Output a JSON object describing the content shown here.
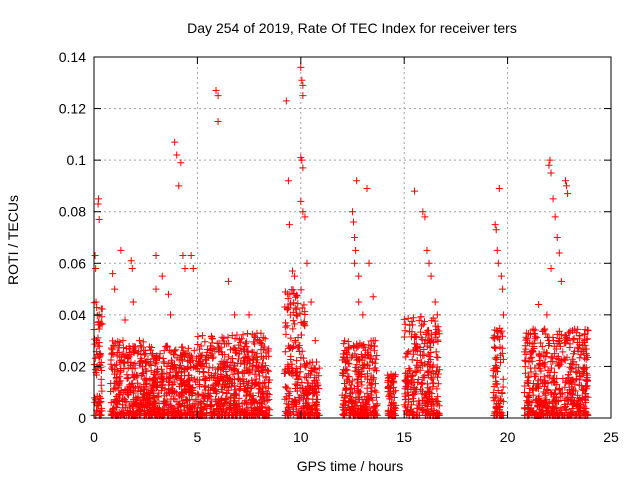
{
  "chart_data": {
    "type": "scatter",
    "title": "Day 254 of 2019, Rate Of TEC Index for receiver ters",
    "xlabel": "GPS time / hours",
    "ylabel": "ROTI / TECUs",
    "xlim": [
      0,
      25
    ],
    "ylim": [
      0,
      0.14
    ],
    "x_ticks": [
      0,
      5,
      10,
      15,
      20,
      25
    ],
    "x_tick_labels": [
      "0",
      "5",
      "10",
      "15",
      "20",
      "25"
    ],
    "y_ticks": [
      0,
      0.02,
      0.04,
      0.06,
      0.08,
      0.1,
      0.12,
      0.14
    ],
    "y_tick_labels": [
      "0",
      "0.02",
      "0.04",
      "0.06",
      "0.08",
      "0.1",
      "0.12",
      "0.14"
    ],
    "grid": true,
    "marker": "+",
    "color": "#ff0000",
    "series": [
      {
        "name": "ROTI",
        "points": [
          [
            0.05,
            0.063
          ],
          [
            0.08,
            0.058
          ],
          [
            0.1,
            0.045
          ],
          [
            0.12,
            0.03
          ],
          [
            0.15,
            0.02
          ],
          [
            0.2,
            0.083
          ],
          [
            0.22,
            0.085
          ],
          [
            0.25,
            0.077
          ],
          [
            0.25,
            0.04
          ],
          [
            0.3,
            0.025
          ],
          [
            0.35,
            0.015
          ],
          [
            0.9,
            0.056
          ],
          [
            1.0,
            0.05
          ],
          [
            1.3,
            0.065
          ],
          [
            1.4,
            0.03
          ],
          [
            1.5,
            0.038
          ],
          [
            1.8,
            0.061
          ],
          [
            1.85,
            0.058
          ],
          [
            1.9,
            0.045
          ],
          [
            2.2,
            0.03
          ],
          [
            2.5,
            0.025
          ],
          [
            3.0,
            0.063
          ],
          [
            3.0,
            0.05
          ],
          [
            3.3,
            0.055
          ],
          [
            3.6,
            0.048
          ],
          [
            3.7,
            0.04
          ],
          [
            3.9,
            0.107
          ],
          [
            4.0,
            0.102
          ],
          [
            4.1,
            0.09
          ],
          [
            4.2,
            0.099
          ],
          [
            4.3,
            0.063
          ],
          [
            4.4,
            0.058
          ],
          [
            4.7,
            0.063
          ],
          [
            4.8,
            0.058
          ],
          [
            5.9,
            0.127
          ],
          [
            6.0,
            0.125
          ],
          [
            6.0,
            0.115
          ],
          [
            6.5,
            0.053
          ],
          [
            6.8,
            0.04
          ],
          [
            7.5,
            0.04
          ],
          [
            8.0,
            0.03
          ],
          [
            9.3,
            0.123
          ],
          [
            9.4,
            0.092
          ],
          [
            9.45,
            0.075
          ],
          [
            9.6,
            0.057
          ],
          [
            9.7,
            0.055
          ],
          [
            9.8,
            0.04
          ],
          [
            10.0,
            0.136
          ],
          [
            10.05,
            0.131
          ],
          [
            10.1,
            0.129
          ],
          [
            10.1,
            0.125
          ],
          [
            10.0,
            0.101
          ],
          [
            10.05,
            0.1
          ],
          [
            10.1,
            0.097
          ],
          [
            10.0,
            0.084
          ],
          [
            10.1,
            0.08
          ],
          [
            10.2,
            0.078
          ],
          [
            10.3,
            0.06
          ],
          [
            10.5,
            0.045
          ],
          [
            10.7,
            0.03
          ],
          [
            12.5,
            0.08
          ],
          [
            12.55,
            0.076
          ],
          [
            12.6,
            0.07
          ],
          [
            12.65,
            0.065
          ],
          [
            12.7,
            0.092
          ],
          [
            12.6,
            0.06
          ],
          [
            12.8,
            0.055
          ],
          [
            12.8,
            0.045
          ],
          [
            13.0,
            0.04
          ],
          [
            13.2,
            0.089
          ],
          [
            13.3,
            0.06
          ],
          [
            13.5,
            0.047
          ],
          [
            13.6,
            0.03
          ],
          [
            15.5,
            0.088
          ],
          [
            15.9,
            0.08
          ],
          [
            16.0,
            0.078
          ],
          [
            16.1,
            0.065
          ],
          [
            16.2,
            0.06
          ],
          [
            16.3,
            0.055
          ],
          [
            16.5,
            0.045
          ],
          [
            16.6,
            0.04
          ],
          [
            19.4,
            0.075
          ],
          [
            19.45,
            0.073
          ],
          [
            19.5,
            0.065
          ],
          [
            19.55,
            0.06
          ],
          [
            19.6,
            0.089
          ],
          [
            19.7,
            0.055
          ],
          [
            19.75,
            0.05
          ],
          [
            19.8,
            0.04
          ],
          [
            21.5,
            0.044
          ],
          [
            21.9,
            0.04
          ],
          [
            22.0,
            0.098
          ],
          [
            22.05,
            0.1
          ],
          [
            22.1,
            0.095
          ],
          [
            22.2,
            0.085
          ],
          [
            22.3,
            0.078
          ],
          [
            22.4,
            0.07
          ],
          [
            22.5,
            0.064
          ],
          [
            22.1,
            0.058
          ],
          [
            22.6,
            0.053
          ],
          [
            22.8,
            0.092
          ],
          [
            22.85,
            0.09
          ],
          [
            22.9,
            0.087
          ],
          [
            23.0,
            0.033
          ]
        ]
      }
    ],
    "dense_bands": [
      {
        "x_range": [
          0.0,
          0.4
        ],
        "y_range": [
          0.0,
          0.045
        ]
      },
      {
        "x_range": [
          0.8,
          2.6
        ],
        "y_range": [
          0.0,
          0.03
        ]
      },
      {
        "x_range": [
          2.6,
          5.0
        ],
        "y_range": [
          0.0,
          0.028
        ]
      },
      {
        "x_range": [
          5.0,
          6.8
        ],
        "y_range": [
          0.0,
          0.032
        ]
      },
      {
        "x_range": [
          6.8,
          8.5
        ],
        "y_range": [
          0.0,
          0.033
        ]
      },
      {
        "x_range": [
          9.2,
          10.2
        ],
        "y_range": [
          0.0,
          0.05
        ]
      },
      {
        "x_range": [
          10.2,
          10.9
        ],
        "y_range": [
          0.0,
          0.022
        ]
      },
      {
        "x_range": [
          12.0,
          13.7
        ],
        "y_range": [
          0.0,
          0.03
        ]
      },
      {
        "x_range": [
          14.2,
          14.6
        ],
        "y_range": [
          0.0,
          0.018
        ]
      },
      {
        "x_range": [
          15.0,
          16.7
        ],
        "y_range": [
          0.0,
          0.04
        ]
      },
      {
        "x_range": [
          19.3,
          19.8
        ],
        "y_range": [
          0.0,
          0.035
        ]
      },
      {
        "x_range": [
          20.8,
          23.9
        ],
        "y_range": [
          0.0,
          0.035
        ]
      }
    ]
  }
}
